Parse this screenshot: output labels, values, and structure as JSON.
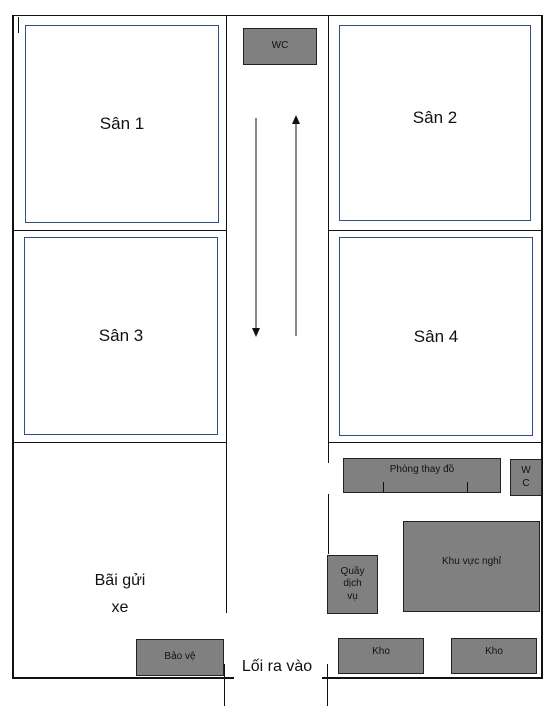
{
  "courts": [
    {
      "id": "1",
      "label": "Sân 1"
    },
    {
      "id": "2",
      "label": "Sân 2"
    },
    {
      "id": "3",
      "label": "Sân 3"
    },
    {
      "id": "4",
      "label": "Sân 4"
    }
  ],
  "facilities": {
    "wc_top": "WC",
    "changing_room": "Phòng thay đồ",
    "wc_side_line1": "W",
    "wc_side_line2": "C",
    "service_line1": "Quầy",
    "service_line2": "dịch",
    "service_line3": "vụ",
    "rest_area": "Khu vực nghỉ",
    "security": "Bảo vệ",
    "storage_1": "Kho",
    "storage_2": "Kho"
  },
  "parking": {
    "line1": "Bãi gửi",
    "line2": "xe"
  },
  "entrance": "Lối ra vào",
  "colors": {
    "box_fill": "#808080",
    "court_border": "#2f4f7f",
    "line": "#111111"
  }
}
